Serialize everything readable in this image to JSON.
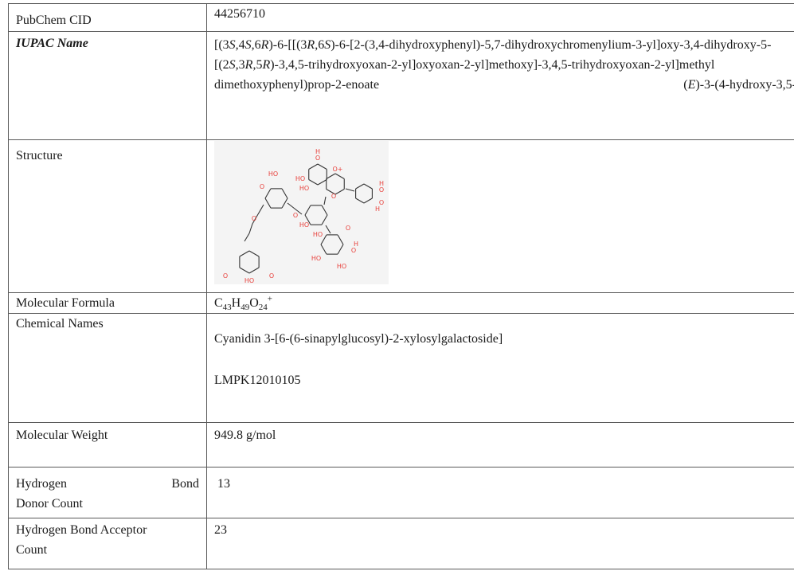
{
  "rows": {
    "cid": {
      "label": "PubChem CID",
      "value": "44256710"
    },
    "iupac": {
      "label": "IUPAC Name",
      "parts": [
        "[(3",
        "S",
        ",4",
        "S",
        ",6",
        "R",
        ")-6-[[(3",
        "R",
        ",6",
        "S",
        ")-6-[2-(3,4-dihydroxyphenyl)-5,7-dihydroxychromenylium-3-yl]oxy-3,4-dihydroxy-5-[(2",
        "S",
        ",3",
        "R",
        ",5",
        "R",
        ")-3,4,5-trihydroxyoxan-2-yl]oxyoxan-2-yl]methoxy]-3,4,5-trihydroxyoxan-2-yl]methyl"
      ],
      "last_line": {
        "stereo": "E",
        "rest": ")-3-(4-hydroxy-3,5-",
        "tail": "dimethoxyphenyl)prop-2-enoate"
      }
    },
    "structure": {
      "label": "Structure"
    },
    "formula": {
      "label": "Molecular Formula",
      "pieces": [
        {
          "t": "C"
        },
        {
          "sub": "43"
        },
        {
          "t": "H"
        },
        {
          "sub": "49"
        },
        {
          "t": "O"
        },
        {
          "sub": "24"
        },
        {
          "sup": "+"
        }
      ]
    },
    "names": {
      "label": "Chemical Names",
      "name1": "Cyanidin 3-[6-(6-sinapylglucosyl)-2-xylosylgalactoside]",
      "name2": "LMPK12010105"
    },
    "weight": {
      "label": "Molecular Weight",
      "value": "949.8 g/mol"
    },
    "hbd": {
      "label_1": "Hydrogen",
      "label_2": "Bond",
      "label_3": "Donor Count",
      "value": "13"
    },
    "hba": {
      "label_1": "Hydrogen Bond Acceptor",
      "label_2": "Count",
      "value": "23"
    }
  },
  "structure_atom_labels": {
    "ring_oxygen": "O",
    "flavylium_oxygen": "O+",
    "hydroxyl": "HO",
    "hydroxyl_h": "H"
  },
  "colors": {
    "oxygen": "#e8413c",
    "bond": "#333333",
    "border": "#5a5a5a"
  }
}
